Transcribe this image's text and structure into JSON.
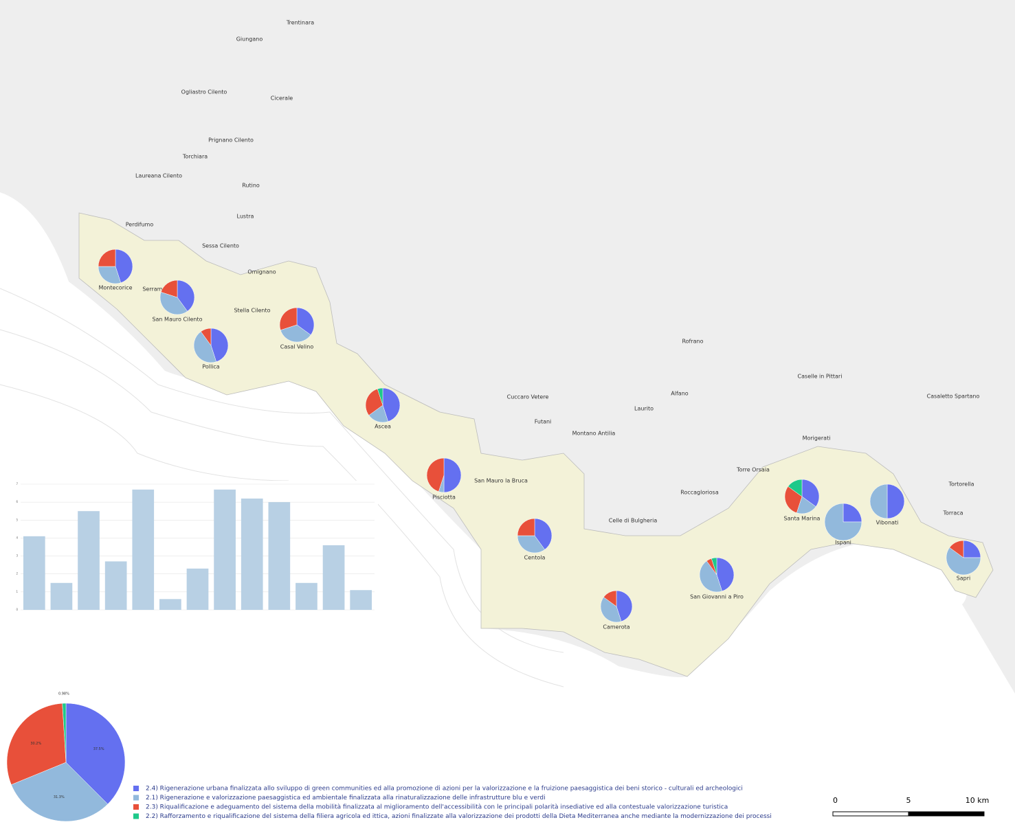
{
  "places": [
    "Trentinara",
    "Giungano",
    "Ogliastro Cilento",
    "Cicerale",
    "Prignano Cilento",
    "Torchiara",
    "Laureana Cilento",
    "Rutino",
    "Lustra",
    "Perdifumo",
    "Sessa Cilento",
    "Omignano",
    "Montecorice",
    "Serramezzana",
    "San Mauro Cilento",
    "Stella Cilento",
    "Casal Velino",
    "Pollica",
    "Ascea",
    "Cuccaro Vetere",
    "Futani",
    "Montano Antilia",
    "Laurito",
    "Alfano",
    "Rofrano",
    "Caselle in Pittari",
    "Casaletto Spartano",
    "Morigerati",
    "Torre Orsaia",
    "Tortorella",
    "Roccagloriosa",
    "San Mauro la Bruca",
    "Pisciotta",
    "Celle di Bulgheria",
    "Santa Marina",
    "Vibonati",
    "Ispani",
    "Torraca",
    "Centola",
    "Sapri",
    "San Giovanni a Piro",
    "Camerota"
  ],
  "legend": [
    {
      "label": "2.4) Rigenerazione urbana finalizzata allo sviluppo di green communities ed alla promozione di azioni per la valorizzazione e la fruizione paesaggistica dei beni storico - culturali ed archeologici",
      "color": "#6470f0"
    },
    {
      "label": "2.1) Rigenerazione e valorizzazione paesaggistica ed ambientale finalizzata alla rinaturalizzazione delle infrastrutture blu e verdi",
      "color": "#92b9dc"
    },
    {
      "label": "2.3) Riqualificazione e adeguamento del sistema della mobilità finalizzata al miglioramento dell'accessibilità con le principali polarità insediative ed alla contestuale valorizzazione turistica",
      "color": "#e8503a"
    },
    {
      "label": "2.2) Rafforzamento e riqualificazione del sistema della filiera agricola ed ittica, azioni finalizzate alla valorizzazione dei prodotti della Dieta Mediterranea anche mediante la modernizzazione dei processi",
      "color": "#1ec98a"
    }
  ],
  "municipal_pies": [
    {
      "name": "Montecorice",
      "values": [
        45,
        30,
        25,
        0
      ]
    },
    {
      "name": "San Mauro Cilento",
      "values": [
        40,
        40,
        20,
        0
      ]
    },
    {
      "name": "Pollica",
      "values": [
        45,
        45,
        10,
        0
      ]
    },
    {
      "name": "Casal Velino",
      "values": [
        35,
        35,
        30,
        0
      ]
    },
    {
      "name": "Ascea",
      "values": [
        45,
        20,
        30,
        5
      ]
    },
    {
      "name": "Pisciotta",
      "values": [
        50,
        5,
        45,
        0
      ]
    },
    {
      "name": "Centola",
      "values": [
        40,
        35,
        25,
        0
      ]
    },
    {
      "name": "Camerota",
      "values": [
        45,
        40,
        15,
        0
      ]
    },
    {
      "name": "San Giovanni a Piro",
      "values": [
        45,
        45,
        5,
        5
      ]
    },
    {
      "name": "Santa Marina",
      "values": [
        35,
        20,
        30,
        15
      ]
    },
    {
      "name": "Ispani",
      "values": [
        25,
        75,
        0,
        0
      ]
    },
    {
      "name": "Vibonati",
      "values": [
        50,
        50,
        0,
        0
      ]
    },
    {
      "name": "Sapri",
      "values": [
        25,
        60,
        15,
        0
      ]
    }
  ],
  "bar_chart": {
    "type": "bar",
    "values": [
      4.1,
      1.5,
      5.5,
      2.7,
      6.7,
      0.6,
      2.3,
      6.7,
      6.2,
      6.0,
      1.5,
      3.6,
      1.1
    ],
    "color": "#b8d0e4",
    "ylim": [
      0,
      7
    ],
    "yticks": [
      0,
      1,
      2,
      3,
      4,
      5,
      6,
      7
    ]
  },
  "total_pie": {
    "type": "pie",
    "values": [
      37.5,
      31.3,
      30.2,
      0.98
    ],
    "value_labels": [
      "37.5%",
      "31.3%",
      "30.2%",
      "0.98%"
    ]
  },
  "scale_bar": {
    "labels": [
      "0",
      "5",
      "10 km"
    ]
  }
}
